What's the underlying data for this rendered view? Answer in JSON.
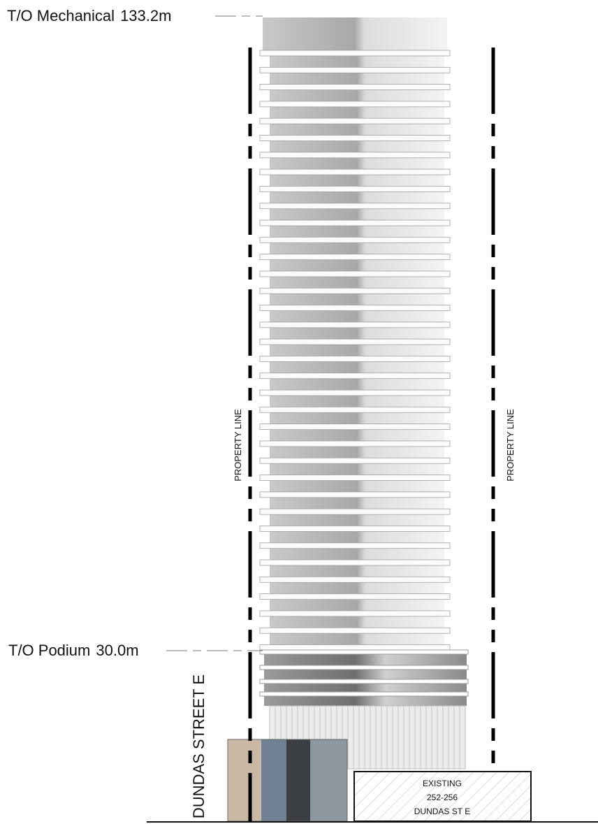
{
  "levels": [
    {
      "label": "T/O Mechanical",
      "height": "133.2m"
    },
    {
      "label": "T/O Podium",
      "height": "30.0m"
    }
  ],
  "property_lines": [
    "PROPERTY LINE",
    "PROPERTY LINE"
  ],
  "street": "DUNDAS STREET E",
  "existing": {
    "lines": [
      "EXISTING",
      "252-256",
      "DUNDAS ST E"
    ]
  }
}
